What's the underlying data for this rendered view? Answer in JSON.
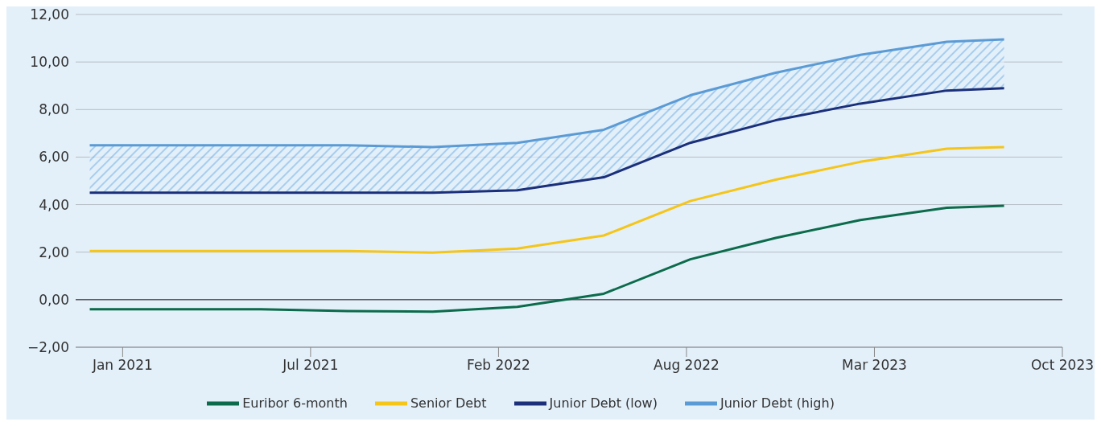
{
  "chart_data": {
    "type": "line",
    "x": [
      "2020-12-01",
      "2021-03-01",
      "2021-06-01",
      "2021-09-01",
      "2021-12-01",
      "2022-03-01",
      "2022-06-01",
      "2022-09-01",
      "2022-12-01",
      "2023-03-01",
      "2023-06-01",
      "2023-08-01"
    ],
    "series": [
      {
        "name": "Euribor 6-month",
        "color": "#0b6b4a",
        "values": [
          -0.4,
          -0.4,
          -0.4,
          -0.48,
          -0.5,
          -0.3,
          0.25,
          1.7,
          2.6,
          3.35,
          3.87,
          3.95
        ]
      },
      {
        "name": "Senior Debt",
        "color": "#f5c518",
        "values": [
          2.05,
          2.05,
          2.05,
          2.05,
          1.98,
          2.15,
          2.7,
          4.15,
          5.05,
          5.8,
          6.35,
          6.42
        ]
      },
      {
        "name": "Junior Debt (low)",
        "color": "#1b2f7a",
        "values": [
          4.5,
          4.5,
          4.5,
          4.5,
          4.5,
          4.6,
          5.15,
          6.6,
          7.55,
          8.25,
          8.8,
          8.9
        ]
      },
      {
        "name": "Junior Debt (high)",
        "color": "#5b9bd5",
        "values": [
          6.5,
          6.5,
          6.5,
          6.5,
          6.42,
          6.6,
          7.15,
          8.6,
          9.55,
          10.3,
          10.85,
          10.95
        ],
        "lower": [
          4.5,
          4.5,
          4.5,
          4.5,
          4.5,
          4.6,
          5.15,
          6.6,
          7.55,
          8.25,
          8.8,
          8.9
        ],
        "upper": [
          6.5,
          6.5,
          6.5,
          6.5,
          6.42,
          6.6,
          7.15,
          8.6,
          9.55,
          10.3,
          10.85,
          10.95
        ]
      }
    ],
    "xlim": [
      "2020-11-16",
      "2023-10-02"
    ],
    "xticks": [
      {
        "value": "2021-01-05",
        "label": "Jan 2021"
      },
      {
        "value": "2021-07-24",
        "label": "Jul 2021"
      },
      {
        "value": "2022-02-09",
        "label": "Feb 2022"
      },
      {
        "value": "2022-08-28",
        "label": "Aug 2022"
      },
      {
        "value": "2023-03-16",
        "label": "Mar 2023"
      },
      {
        "value": "2023-10-02",
        "label": "Oct 2023"
      }
    ],
    "ylim": [
      -2,
      12
    ],
    "yticks": [
      {
        "value": -2,
        "label": "−2,00"
      },
      {
        "value": 0,
        "label": "0,00"
      },
      {
        "value": 2,
        "label": "2,00"
      },
      {
        "value": 4,
        "label": "4,00"
      },
      {
        "value": 6,
        "label": "6,00"
      },
      {
        "value": 8,
        "label": "8,00"
      },
      {
        "value": 10,
        "label": "10,00"
      },
      {
        "value": 12,
        "label": "12,00"
      }
    ],
    "ref_lines": [
      {
        "axis": "y",
        "value": 0,
        "color": "#222222"
      }
    ],
    "grid": "y",
    "legend": "bottom",
    "marker": "none",
    "line_style": "solid"
  }
}
